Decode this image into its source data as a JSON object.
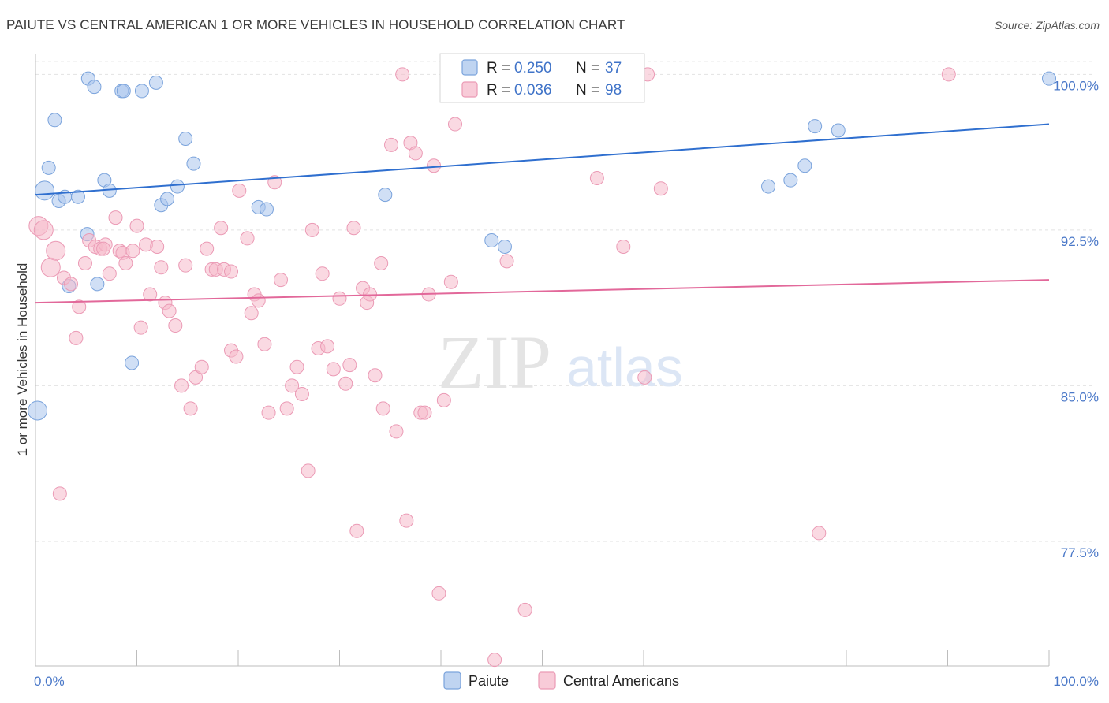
{
  "title": "PAIUTE VS CENTRAL AMERICAN 1 OR MORE VEHICLES IN HOUSEHOLD CORRELATION CHART",
  "source": "Source: ZipAtlas.com",
  "watermark": {
    "part1": "ZIP",
    "part2": "atlas"
  },
  "chart_data": {
    "type": "scatter",
    "xlabel": "",
    "ylabel": "1 or more Vehicles in Household",
    "xlim": [
      0,
      100
    ],
    "ylim": [
      71.5,
      101.0
    ],
    "x_tick_labels": [
      "0.0%",
      "100.0%"
    ],
    "y_ticks": [
      77.5,
      85.0,
      92.5,
      100.0
    ],
    "y_tick_labels": [
      "77.5%",
      "85.0%",
      "92.5%",
      "100.0%"
    ],
    "grid": true,
    "legend_position": "top-center",
    "series": [
      {
        "name": "Paiute",
        "color": "#a9c5ec",
        "line_color": "#2f6fcf",
        "R": "0.250",
        "N": "37",
        "trend": {
          "y_at_0": 94.2,
          "y_at_100": 97.6
        },
        "points": [
          [
            0.2,
            83.8
          ],
          [
            0.9,
            94.4
          ],
          [
            1.3,
            95.5
          ],
          [
            1.9,
            97.8
          ],
          [
            2.3,
            93.9
          ],
          [
            2.9,
            94.1
          ],
          [
            3.3,
            89.8
          ],
          [
            4.2,
            94.1
          ],
          [
            5.1,
            92.3
          ],
          [
            5.2,
            99.8
          ],
          [
            5.8,
            99.4
          ],
          [
            6.1,
            89.9
          ],
          [
            6.8,
            94.9
          ],
          [
            7.3,
            94.4
          ],
          [
            8.5,
            99.2
          ],
          [
            8.7,
            99.2
          ],
          [
            9.5,
            86.1
          ],
          [
            10.5,
            99.2
          ],
          [
            11.9,
            99.6
          ],
          [
            12.4,
            93.7
          ],
          [
            13.0,
            94.0
          ],
          [
            14.0,
            94.6
          ],
          [
            14.8,
            96.9
          ],
          [
            15.6,
            95.7
          ],
          [
            22.0,
            93.6
          ],
          [
            22.8,
            93.5
          ],
          [
            34.5,
            94.2
          ],
          [
            45.0,
            92.0
          ],
          [
            46.3,
            91.7
          ],
          [
            47.4,
            100.0
          ],
          [
            48.7,
            99.9
          ],
          [
            72.3,
            94.6
          ],
          [
            74.5,
            94.9
          ],
          [
            75.9,
            95.6
          ],
          [
            76.9,
            97.5
          ],
          [
            79.2,
            97.3
          ],
          [
            100.0,
            99.8
          ]
        ]
      },
      {
        "name": "Central Americans",
        "color": "#f6b9cb",
        "line_color": "#e2689a",
        "R": "0.036",
        "N": "98",
        "trend": {
          "y_at_0": 89.0,
          "y_at_100": 90.1
        },
        "points": [
          [
            0.3,
            92.7
          ],
          [
            0.8,
            92.5
          ],
          [
            1.5,
            90.7
          ],
          [
            2.0,
            91.5
          ],
          [
            2.4,
            79.8
          ],
          [
            2.8,
            90.2
          ],
          [
            3.5,
            89.9
          ],
          [
            4.0,
            87.3
          ],
          [
            4.3,
            88.8
          ],
          [
            4.9,
            90.9
          ],
          [
            5.3,
            92.0
          ],
          [
            5.9,
            91.7
          ],
          [
            6.4,
            91.6
          ],
          [
            6.9,
            91.8
          ],
          [
            7.3,
            90.4
          ],
          [
            7.9,
            93.1
          ],
          [
            8.3,
            91.5
          ],
          [
            8.6,
            91.4
          ],
          [
            8.9,
            90.9
          ],
          [
            9.6,
            91.5
          ],
          [
            10.0,
            92.7
          ],
          [
            10.4,
            87.8
          ],
          [
            10.9,
            91.8
          ],
          [
            11.3,
            89.4
          ],
          [
            12.0,
            91.7
          ],
          [
            12.4,
            90.7
          ],
          [
            12.8,
            89.0
          ],
          [
            13.2,
            88.6
          ],
          [
            13.8,
            87.9
          ],
          [
            14.4,
            85.0
          ],
          [
            14.8,
            90.8
          ],
          [
            15.3,
            83.9
          ],
          [
            15.8,
            85.4
          ],
          [
            16.4,
            85.9
          ],
          [
            16.9,
            91.6
          ],
          [
            17.4,
            90.6
          ],
          [
            17.8,
            90.6
          ],
          [
            18.3,
            92.6
          ],
          [
            18.6,
            90.6
          ],
          [
            19.3,
            86.7
          ],
          [
            19.3,
            90.5
          ],
          [
            19.8,
            86.4
          ],
          [
            20.1,
            94.4
          ],
          [
            20.9,
            92.1
          ],
          [
            21.3,
            88.5
          ],
          [
            21.6,
            89.4
          ],
          [
            22.0,
            89.1
          ],
          [
            22.6,
            87.0
          ],
          [
            23.0,
            83.7
          ],
          [
            23.6,
            94.8
          ],
          [
            24.2,
            90.1
          ],
          [
            24.8,
            83.9
          ],
          [
            25.3,
            85.0
          ],
          [
            25.8,
            85.9
          ],
          [
            26.3,
            84.6
          ],
          [
            26.9,
            80.9
          ],
          [
            27.3,
            92.5
          ],
          [
            27.9,
            86.8
          ],
          [
            28.3,
            90.4
          ],
          [
            28.8,
            86.9
          ],
          [
            29.4,
            85.8
          ],
          [
            30.0,
            89.2
          ],
          [
            30.6,
            85.1
          ],
          [
            31.0,
            86.0
          ],
          [
            31.4,
            92.6
          ],
          [
            31.7,
            78.0
          ],
          [
            32.3,
            89.7
          ],
          [
            32.7,
            89.0
          ],
          [
            33.0,
            89.4
          ],
          [
            33.5,
            85.5
          ],
          [
            34.1,
            90.9
          ],
          [
            34.3,
            83.9
          ],
          [
            35.1,
            96.6
          ],
          [
            35.6,
            82.8
          ],
          [
            36.2,
            100.0
          ],
          [
            36.6,
            78.5
          ],
          [
            37.0,
            96.7
          ],
          [
            37.5,
            96.2
          ],
          [
            38.0,
            83.7
          ],
          [
            38.4,
            83.7
          ],
          [
            38.8,
            89.4
          ],
          [
            39.3,
            95.6
          ],
          [
            39.8,
            75.0
          ],
          [
            40.3,
            84.3
          ],
          [
            41.0,
            90.0
          ],
          [
            41.4,
            97.6
          ],
          [
            45.3,
            71.8
          ],
          [
            46.5,
            91.0
          ],
          [
            48.3,
            74.2
          ],
          [
            51.3,
            99.9
          ],
          [
            55.4,
            95.0
          ],
          [
            58.0,
            91.7
          ],
          [
            60.1,
            85.4
          ],
          [
            60.4,
            100.0
          ],
          [
            61.7,
            94.5
          ],
          [
            77.3,
            77.9
          ],
          [
            90.1,
            100.0
          ],
          [
            6.7,
            91.6
          ]
        ]
      }
    ]
  }
}
